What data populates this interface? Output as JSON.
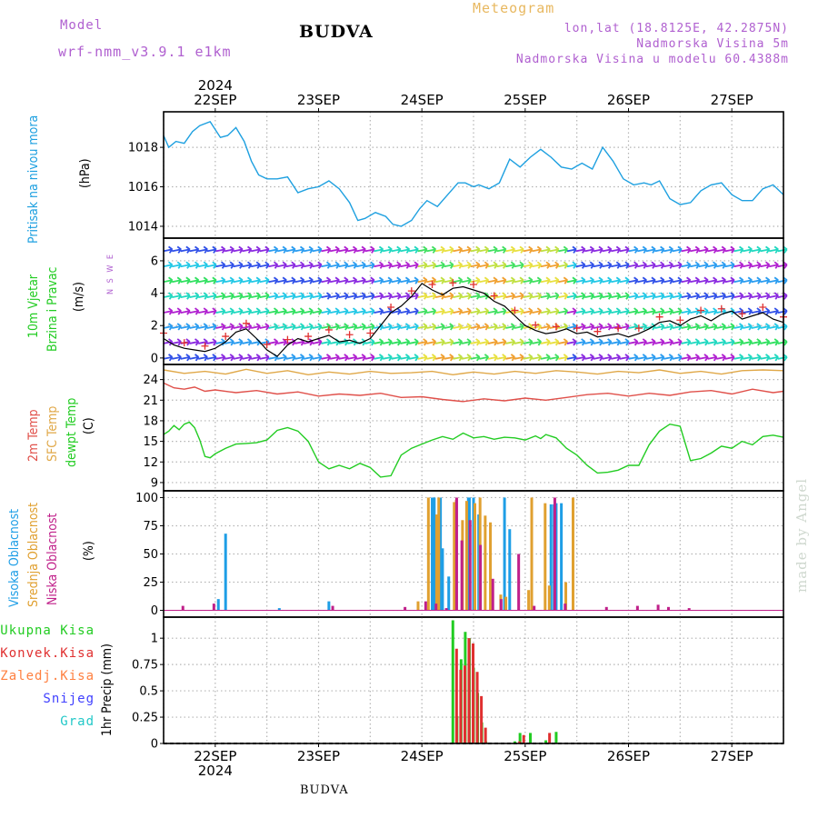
{
  "header": {
    "model_label": "Model",
    "model_name": "wrf-nmm_v3.9.1 e1km",
    "location": "BUDVA",
    "product": "Meteogram",
    "lonlat": "lon,lat (18.8125E, 42.2875N)",
    "elevation": "Nadmorska Visina 5m",
    "model_elevation": "Nadmorska Visina u modelu 60.4388m"
  },
  "footer": {
    "location": "BUDVA",
    "credit": "made by Angel"
  },
  "colors": {
    "pressure": "#1ea0e0",
    "temp2m": "#e0504a",
    "sfc_temp": "#e0a848",
    "dewpt": "#22cc22",
    "high_cloud": "#1e9ee6",
    "mid_cloud": "#e0a030",
    "low_cloud": "#c0208a",
    "total_precip": "#22cc22",
    "convective_precip": "#e03030",
    "freezing_precip": "#ff8040",
    "snow": "#4040ff",
    "hail": "#22c8c8"
  },
  "chart_data": {
    "type": "meteogram",
    "time_axis": {
      "year": "2024",
      "day_labels": [
        "22SEP",
        "23SEP",
        "24SEP",
        "25SEP",
        "26SEP",
        "27SEP"
      ],
      "range_days": [
        -0.5,
        5.5
      ]
    },
    "panels": [
      {
        "type": "line",
        "label_lines": [
          "Pritisak na nivou mora"
        ],
        "ylabel": "(hPa)",
        "ylim": [
          1013.4,
          1019.8
        ],
        "yticks": [
          "1014",
          "1016",
          "1018"
        ],
        "series": [
          {
            "color_key": "pressure",
            "x": [
              -0.5,
              -0.45,
              -0.38,
              -0.3,
              -0.22,
              -0.15,
              -0.05,
              0.0,
              0.05,
              0.12,
              0.2,
              0.28,
              0.35,
              0.42,
              0.5,
              0.6,
              0.7,
              0.8,
              0.9,
              1.0,
              1.1,
              1.2,
              1.3,
              1.38,
              1.45,
              1.55,
              1.65,
              1.72,
              1.8,
              1.9,
              1.98,
              2.05,
              2.15,
              2.25,
              2.35,
              2.42,
              2.5,
              2.55,
              2.65,
              2.75,
              2.85,
              2.95,
              3.05,
              3.15,
              3.25,
              3.35,
              3.45,
              3.55,
              3.65,
              3.75,
              3.85,
              3.95,
              4.05,
              4.15,
              4.22,
              4.3,
              4.4,
              4.5,
              4.6,
              4.7,
              4.8,
              4.9,
              5.0,
              5.1,
              5.2,
              5.3,
              5.4,
              5.5
            ],
            "y": [
              1018.6,
              1018.0,
              1018.3,
              1018.2,
              1018.8,
              1019.1,
              1019.3,
              1018.9,
              1018.5,
              1018.6,
              1019.0,
              1018.3,
              1017.3,
              1016.6,
              1016.4,
              1016.4,
              1016.5,
              1015.7,
              1015.9,
              1016.0,
              1016.3,
              1015.9,
              1015.2,
              1014.3,
              1014.4,
              1014.7,
              1014.5,
              1014.1,
              1014.0,
              1014.3,
              1014.9,
              1015.3,
              1015.0,
              1015.6,
              1016.2,
              1016.2,
              1016.0,
              1016.1,
              1015.9,
              1016.2,
              1017.4,
              1017.0,
              1017.5,
              1017.9,
              1017.5,
              1017.0,
              1016.9,
              1017.2,
              1016.9,
              1018.0,
              1017.3,
              1016.4,
              1016.1,
              1016.2,
              1016.1,
              1016.3,
              1015.4,
              1015.1,
              1015.2,
              1015.8,
              1016.1,
              1016.2,
              1015.6,
              1015.3,
              1015.3,
              1015.9,
              1016.1,
              1015.6
            ]
          }
        ]
      },
      {
        "type": "wind",
        "label_lines": [
          "10m Vjetar",
          "Brzina i Pravac"
        ],
        "ylabel": "(m/s)",
        "ylim": [
          -0.4,
          7.4
        ],
        "yticks": [
          "0",
          "2",
          "4",
          "6"
        ],
        "compass": "N S W E",
        "speed": {
          "x": [
            -0.5,
            -0.4,
            -0.3,
            -0.2,
            -0.1,
            0.0,
            0.1,
            0.2,
            0.3,
            0.4,
            0.5,
            0.6,
            0.7,
            0.8,
            0.9,
            1.0,
            1.1,
            1.2,
            1.3,
            1.4,
            1.5,
            1.6,
            1.7,
            1.8,
            1.9,
            2.0,
            2.1,
            2.2,
            2.3,
            2.4,
            2.5,
            2.6,
            2.7,
            2.8,
            2.9,
            3.0,
            3.1,
            3.2,
            3.3,
            3.4,
            3.5,
            3.6,
            3.7,
            3.8,
            3.9,
            4.0,
            4.1,
            4.2,
            4.3,
            4.4,
            4.5,
            4.6,
            4.7,
            4.8,
            4.9,
            5.0,
            5.1,
            5.2,
            5.3,
            5.4,
            5.5
          ],
          "y": [
            1.2,
            0.8,
            0.6,
            0.5,
            0.4,
            0.6,
            1.0,
            1.6,
            1.8,
            1.2,
            0.5,
            0.1,
            0.8,
            1.2,
            1.0,
            1.2,
            1.4,
            1.0,
            1.1,
            0.9,
            1.2,
            2.0,
            2.8,
            3.2,
            3.8,
            4.6,
            4.2,
            3.9,
            4.3,
            4.4,
            4.2,
            4.0,
            3.5,
            3.2,
            2.6,
            2.0,
            1.7,
            1.5,
            1.6,
            1.8,
            1.5,
            1.6,
            1.3,
            1.4,
            1.5,
            1.3,
            1.5,
            1.8,
            2.2,
            2.3,
            2.0,
            2.4,
            2.6,
            2.3,
            2.7,
            2.9,
            2.4,
            2.6,
            2.8,
            2.4,
            2.2
          ]
        }
      },
      {
        "type": "line",
        "label_lines": [
          "2m Temp",
          "SFC Temp",
          "dewpt Temp"
        ],
        "ylabel": "(C)",
        "ylim": [
          7.8,
          26.2
        ],
        "yticks": [
          "9",
          "12",
          "15",
          "18",
          "21",
          "24"
        ],
        "series": [
          {
            "color_key": "sfc_temp",
            "x": [
              -0.5,
              -0.3,
              -0.1,
              0.1,
              0.3,
              0.5,
              0.7,
              0.9,
              1.1,
              1.3,
              1.5,
              1.7,
              1.9,
              2.1,
              2.3,
              2.5,
              2.7,
              2.9,
              3.1,
              3.3,
              3.5,
              3.7,
              3.9,
              4.1,
              4.3,
              4.5,
              4.7,
              4.9,
              5.1,
              5.3,
              5.5
            ],
            "y": [
              25.4,
              24.9,
              25.2,
              24.8,
              25.5,
              24.9,
              25.3,
              24.7,
              25.1,
              24.8,
              25.2,
              24.9,
              25.0,
              25.2,
              24.7,
              25.1,
              24.8,
              25.2,
              24.9,
              25.3,
              25.1,
              24.8,
              25.2,
              25.0,
              25.4,
              24.9,
              25.2,
              24.8,
              25.3,
              25.4,
              25.3
            ]
          },
          {
            "color_key": "temp2m",
            "x": [
              -0.5,
              -0.4,
              -0.3,
              -0.2,
              -0.1,
              0.0,
              0.2,
              0.4,
              0.6,
              0.8,
              1.0,
              1.2,
              1.4,
              1.6,
              1.8,
              2.0,
              2.2,
              2.4,
              2.6,
              2.8,
              3.0,
              3.2,
              3.4,
              3.6,
              3.8,
              4.0,
              4.2,
              4.4,
              4.6,
              4.8,
              5.0,
              5.2,
              5.4,
              5.5
            ],
            "y": [
              23.5,
              22.8,
              22.6,
              22.9,
              22.3,
              22.5,
              22.1,
              22.4,
              21.9,
              22.2,
              21.6,
              21.9,
              21.7,
              22.0,
              21.4,
              21.5,
              21.1,
              20.8,
              21.2,
              20.9,
              21.3,
              21.0,
              21.4,
              21.8,
              22.0,
              21.6,
              22.0,
              21.7,
              22.2,
              22.4,
              21.9,
              22.6,
              22.1,
              22.3
            ]
          },
          {
            "color_key": "dewpt",
            "x": [
              -0.5,
              -0.45,
              -0.4,
              -0.35,
              -0.3,
              -0.25,
              -0.2,
              -0.15,
              -0.1,
              -0.05,
              0.0,
              0.1,
              0.2,
              0.3,
              0.4,
              0.5,
              0.6,
              0.7,
              0.8,
              0.9,
              1.0,
              1.1,
              1.2,
              1.3,
              1.35,
              1.4,
              1.5,
              1.6,
              1.7,
              1.8,
              1.9,
              2.0,
              2.1,
              2.2,
              2.3,
              2.4,
              2.5,
              2.6,
              2.7,
              2.8,
              2.9,
              3.0,
              3.1,
              3.15,
              3.2,
              3.3,
              3.4,
              3.5,
              3.6,
              3.7,
              3.8,
              3.9,
              4.0,
              4.1,
              4.2,
              4.3,
              4.4,
              4.5,
              4.6,
              4.7,
              4.8,
              4.9,
              5.0,
              5.1,
              5.2,
              5.3,
              5.4,
              5.5
            ],
            "y": [
              16.0,
              16.5,
              17.3,
              16.7,
              17.5,
              17.8,
              17.0,
              15.2,
              12.8,
              12.6,
              13.2,
              14.0,
              14.6,
              14.7,
              14.8,
              15.2,
              16.6,
              17.0,
              16.5,
              15.0,
              12.0,
              11.0,
              11.5,
              11.0,
              11.4,
              11.8,
              11.2,
              9.8,
              10.0,
              13.0,
              14.0,
              14.6,
              15.2,
              15.7,
              15.3,
              16.2,
              15.5,
              15.7,
              15.3,
              15.6,
              15.5,
              15.2,
              15.8,
              15.4,
              16.0,
              15.5,
              14.0,
              13.0,
              11.5,
              10.4,
              10.5,
              10.8,
              11.5,
              11.5,
              14.5,
              16.5,
              17.5,
              17.2,
              12.2,
              12.5,
              13.3,
              14.3,
              14.0,
              15.0,
              14.5,
              15.7,
              15.9,
              15.6
            ]
          }
        ]
      },
      {
        "type": "bar",
        "label_lines": [
          "Visoka Oblacnost",
          "Srednja Oblacnost",
          "Niska Oblacnost"
        ],
        "ylabel": "(%)",
        "ylim": [
          -6,
          106
        ],
        "yticks": [
          "0",
          "25",
          "50",
          "75",
          "100"
        ],
        "series": [
          {
            "color_key": "high_cloud",
            "x": [
              0.03,
              0.1,
              0.62,
              1.1,
              2.1,
              2.12,
              2.18,
              2.2,
              2.26,
              2.45,
              2.46,
              2.5,
              2.55,
              2.8,
              2.85,
              3.25,
              3.28,
              3.3,
              3.35
            ],
            "y": [
              10,
              68,
              2,
              8,
              100,
              100,
              100,
              55,
              30,
              100,
              100,
              100,
              85,
              100,
              72,
              94,
              94,
              95,
              95
            ]
          },
          {
            "color_key": "mid_cloud",
            "x": [
              1.95,
              2.05,
              2.13,
              2.15,
              2.3,
              2.32,
              2.38,
              2.42,
              2.5,
              2.55,
              2.6,
              2.65,
              2.75,
              2.8,
              3.02,
              3.05,
              3.18,
              3.22,
              3.38,
              3.45
            ],
            "y": [
              8,
              100,
              85,
              100,
              96,
              98,
              80,
              97,
              95,
              100,
              84,
              78,
              14,
              12,
              18,
              100,
              95,
              22,
              25,
              100
            ]
          },
          {
            "color_key": "low_cloud",
            "x": [
              -0.3,
              0.0,
              1.15,
              1.85,
              2.05,
              2.15,
              2.25,
              2.35,
              2.4,
              2.48,
              2.58,
              2.7,
              2.78,
              2.95,
              3.1,
              3.3,
              3.4,
              3.8,
              4.1,
              4.3,
              4.4,
              4.6
            ],
            "y": [
              4,
              6,
              4,
              3,
              8,
              6,
              2,
              100,
              62,
              80,
              58,
              28,
              10,
              50,
              4,
              100,
              6,
              3,
              4,
              5,
              3,
              2
            ]
          }
        ]
      },
      {
        "type": "bar",
        "label_lines": [
          "Ukupna Kisa",
          "Konvek.Kisa",
          "Zaledj.Kisa",
          "Snijeg",
          "Grad"
        ],
        "ylabel": "1hr Precip (mm)",
        "ylim": [
          0,
          1.2
        ],
        "yticks": [
          "0",
          "0.25",
          "0.5",
          "0.75",
          "1"
        ],
        "series": [
          {
            "color_key": "total_precip",
            "x": [
              2.3,
              2.34,
              2.38,
              2.42,
              2.46,
              2.5,
              2.54,
              2.58,
              2.62,
              2.9,
              2.95,
              3.05,
              3.2,
              3.3
            ],
            "y": [
              1.17,
              0.26,
              0.8,
              1.06,
              1.0,
              0.72,
              0.48,
              0.2,
              0.02,
              0.02,
              0.1,
              0.1,
              0.03,
              0.11
            ]
          },
          {
            "color_key": "convective_precip",
            "x": [
              2.32,
              2.36,
              2.4,
              2.44,
              2.48,
              2.52,
              2.56,
              2.6,
              2.93,
              2.97,
              3.22
            ],
            "y": [
              0.9,
              0.7,
              0.74,
              1.0,
              0.95,
              0.68,
              0.45,
              0.15,
              0.02,
              0.08,
              0.1
            ]
          }
        ]
      }
    ]
  }
}
